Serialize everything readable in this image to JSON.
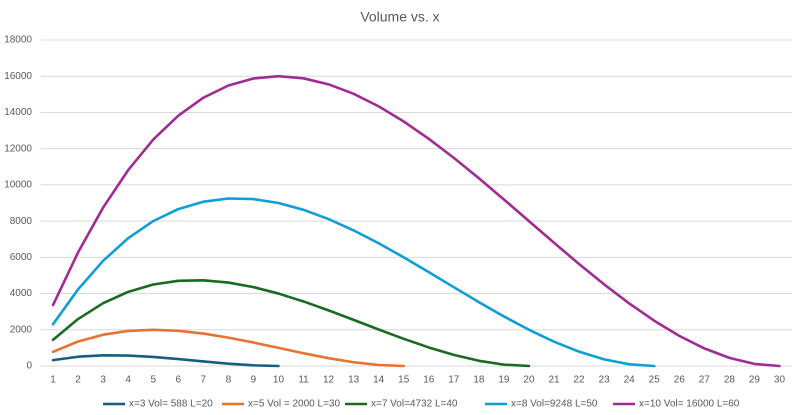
{
  "chart_data": {
    "type": "line",
    "title": "Volume vs. x",
    "categories": [
      1,
      2,
      3,
      4,
      5,
      6,
      7,
      8,
      9,
      10,
      11,
      12,
      13,
      14,
      15,
      16,
      17,
      18,
      19,
      20,
      21,
      22,
      23,
      24,
      25,
      26,
      27,
      28,
      29,
      30
    ],
    "ylim": [
      0,
      18000
    ],
    "yticks": [
      0,
      2000,
      4000,
      6000,
      8000,
      10000,
      12000,
      14000,
      16000,
      18000
    ],
    "grid": true,
    "legend": "bottom",
    "series": [
      {
        "name": "x=3 Vol= 588 L=20",
        "color": "#156082",
        "values": [
          324,
          512,
          588,
          576,
          500,
          384,
          252,
          128,
          36,
          0,
          null,
          null,
          null,
          null,
          null,
          null,
          null,
          null,
          null,
          null,
          null,
          null,
          null,
          null,
          null,
          null,
          null,
          null,
          null,
          null
        ]
      },
      {
        "name": "x=5 Vol = 2000 L=30",
        "color": "#e97132",
        "values": [
          784,
          1352,
          1728,
          1936,
          2000,
          1944,
          1792,
          1568,
          1296,
          1000,
          704,
          432,
          208,
          56,
          0,
          null,
          null,
          null,
          null,
          null,
          null,
          null,
          null,
          null,
          null,
          null,
          null,
          null,
          null,
          null
        ]
      },
      {
        "name": "x=7 Vol=4732 L=40",
        "color": "#196b24",
        "values": [
          1444,
          2592,
          3468,
          4096,
          4500,
          4704,
          4732,
          4608,
          4356,
          4000,
          3564,
          3072,
          2548,
          2016,
          1500,
          1024,
          612,
          288,
          76,
          0,
          null,
          null,
          null,
          null,
          null,
          null,
          null,
          null,
          null,
          null
        ]
      },
      {
        "name": "x=8 Vol=9248 L=50",
        "color": "#0f9ed5",
        "values": [
          2304,
          4232,
          5808,
          7056,
          8000,
          8664,
          9072,
          9248,
          9216,
          9000,
          8624,
          8112,
          7488,
          6776,
          6000,
          5184,
          4352,
          3528,
          2736,
          2000,
          1344,
          792,
          368,
          96,
          0,
          null,
          null,
          null,
          null,
          null
        ]
      },
      {
        "name": "x=10 Vol= 16000 L=60",
        "color": "#a02b93",
        "values": [
          3364,
          6272,
          8748,
          10816,
          12500,
          13824,
          14812,
          15488,
          15876,
          16000,
          15884,
          15552,
          15028,
          14336,
          13500,
          12544,
          11492,
          10368,
          9196,
          8000,
          6804,
          5632,
          4508,
          3456,
          2500,
          1664,
          972,
          448,
          116,
          0
        ]
      }
    ]
  }
}
